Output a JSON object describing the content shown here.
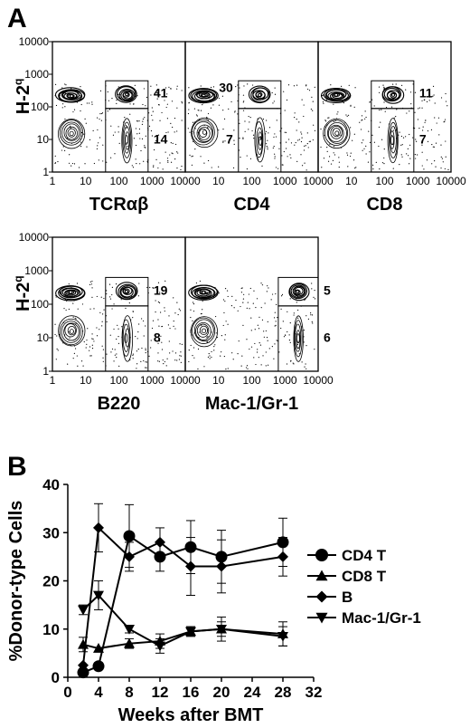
{
  "panel_a": {
    "letter": "A",
    "ylabel_main": "H-2",
    "ylabel_sup": "q",
    "tick_labels": [
      "1",
      "10",
      "100",
      "1000",
      "10000"
    ],
    "rows": [
      {
        "plots": [
          {
            "xlabel": "TCRαβ",
            "upper_value": "41",
            "lower_value": "14"
          },
          {
            "xlabel": "CD4",
            "upper_value": "30",
            "lower_value": "7"
          },
          {
            "xlabel": "CD8",
            "upper_value": "11",
            "lower_value": "7"
          }
        ]
      },
      {
        "plots": [
          {
            "xlabel": "B220",
            "upper_value": "19",
            "lower_value": "8"
          },
          {
            "xlabel": "Mac-1/Gr-1",
            "upper_value": "5",
            "lower_value": "6"
          }
        ]
      }
    ]
  },
  "chart_data": {
    "type": "line",
    "panel_letter": "B",
    "xlabel": "Weeks after BMT",
    "ylabel": "%Donor-type Cells",
    "xlim": [
      0,
      32
    ],
    "ylim": [
      0,
      40
    ],
    "xticks": [
      0,
      4,
      8,
      12,
      16,
      20,
      24,
      28,
      32
    ],
    "yticks": [
      0,
      10,
      20,
      30,
      40
    ],
    "legend_position": "right",
    "series": [
      {
        "name": "CD4 T",
        "marker": "circle",
        "x": [
          2,
          4,
          8,
          12,
          16,
          20,
          28
        ],
        "y": [
          1.0,
          2.3,
          29.3,
          25.0,
          27.0,
          25.0,
          28.0
        ],
        "err": [
          0,
          0,
          6.5,
          3.0,
          5.5,
          5.5,
          5.0
        ]
      },
      {
        "name": "CD8 T",
        "marker": "triangle-up",
        "x": [
          2,
          4,
          8,
          12,
          16,
          20,
          28
        ],
        "y": [
          6.8,
          6.0,
          7.0,
          7.5,
          9.5,
          10.0,
          9.0
        ],
        "err": [
          1.5,
          0,
          1.0,
          1.5,
          1.0,
          2.5,
          2.5
        ]
      },
      {
        "name": "B",
        "marker": "diamond",
        "x": [
          2,
          4,
          8,
          12,
          16,
          20,
          28
        ],
        "y": [
          2.5,
          31.0,
          25.0,
          28.0,
          23.0,
          23.0,
          25.0
        ],
        "err": [
          0,
          5.0,
          3.0,
          3.0,
          6.0,
          5.5,
          4.0
        ]
      },
      {
        "name": "Mac-1/Gr-1",
        "marker": "triangle-down",
        "x": [
          2,
          4,
          8,
          12,
          16,
          20,
          28
        ],
        "y": [
          14.0,
          17.0,
          10.0,
          6.5,
          9.5,
          10.0,
          8.5
        ],
        "err": [
          1.0,
          3.0,
          0.8,
          1.5,
          1.0,
          1.5,
          2.0
        ]
      }
    ]
  }
}
